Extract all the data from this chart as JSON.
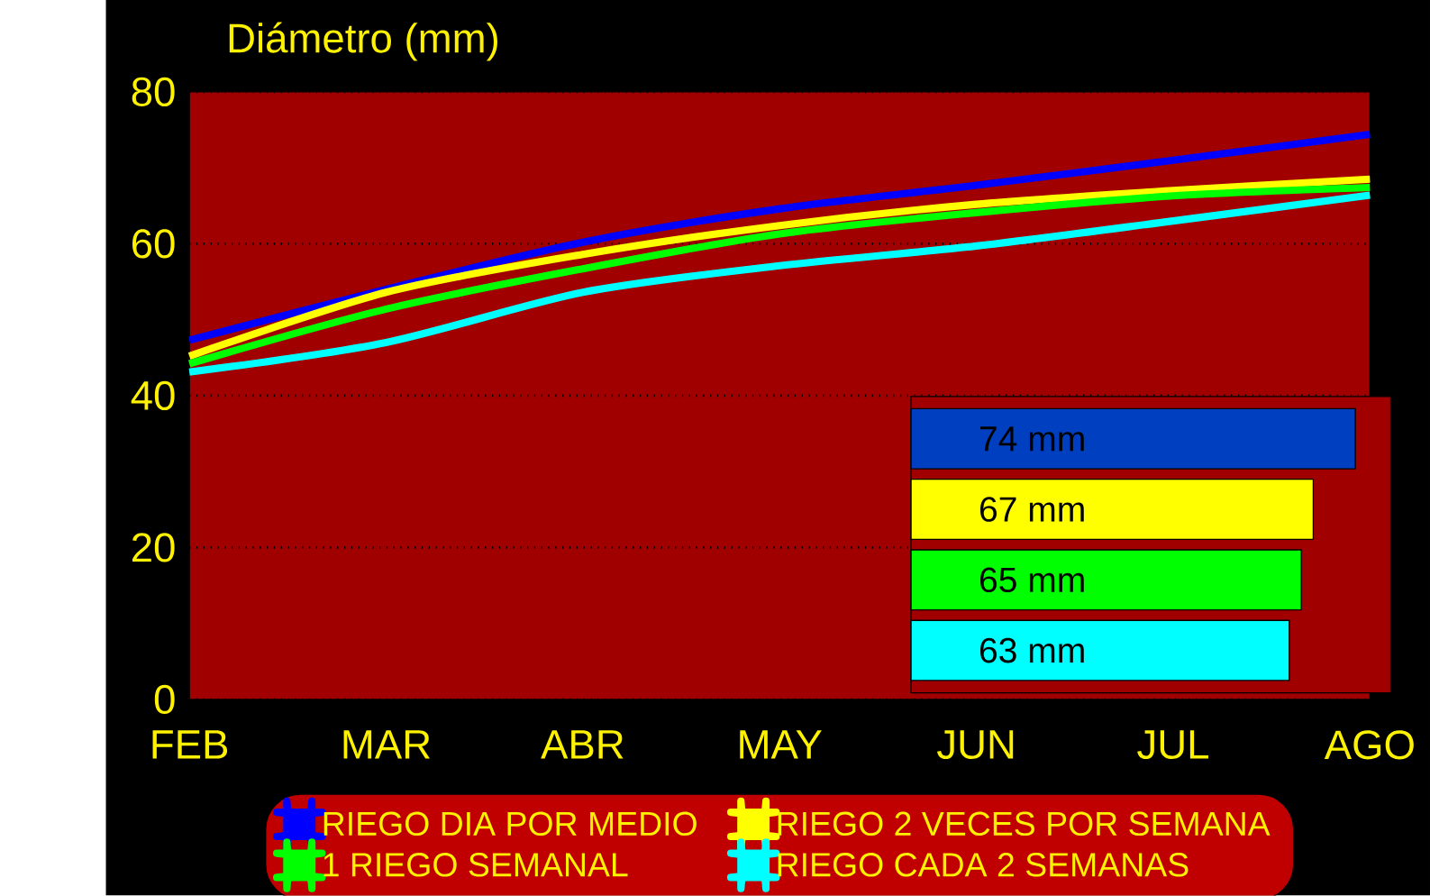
{
  "chart_data": [
    {
      "type": "line",
      "ylabel": "Diámetro (mm)",
      "categories": [
        "FEB",
        "MAR",
        "ABR",
        "MAY",
        "JUN",
        "JUL",
        "AGO"
      ],
      "series": [
        {
          "name": "RIEGO DIA POR MEDIO",
          "color": "#0000ff",
          "values": [
            47.3,
            54.0,
            60.2,
            64.6,
            67.7,
            71.0,
            74.4
          ]
        },
        {
          "name": "RIEGO 2 VECES POR SEMANA",
          "color": "#ffff00",
          "values": [
            45.2,
            53.6,
            58.6,
            62.4,
            65.2,
            67.0,
            68.5
          ]
        },
        {
          "name": "1 RIEGO SEMANAL",
          "color": "#00ff00",
          "values": [
            44.2,
            51.4,
            56.7,
            61.3,
            64.1,
            66.3,
            67.4
          ]
        },
        {
          "name": "RIEGO CADA 2 SEMANAS",
          "color": "#00ffff",
          "values": [
            43.1,
            47.0,
            53.6,
            57.1,
            59.7,
            63.0,
            66.4
          ]
        }
      ],
      "ylim": [
        0,
        80
      ],
      "yticks": [
        0,
        20,
        40,
        60,
        80
      ],
      "grid": "y",
      "legend": "bottom",
      "marker": "none",
      "line_style": "solid"
    },
    {
      "type": "bar",
      "orientation": "horizontal",
      "categories": [
        null,
        null,
        null,
        null
      ],
      "values": [
        74,
        67,
        65,
        63
      ],
      "colors": [
        "#0040c0",
        "#ffff00",
        "#00ff00",
        "#00ffff"
      ],
      "value_labels": [
        "74 mm",
        "67 mm",
        "65 mm",
        "63 mm"
      ]
    }
  ]
}
